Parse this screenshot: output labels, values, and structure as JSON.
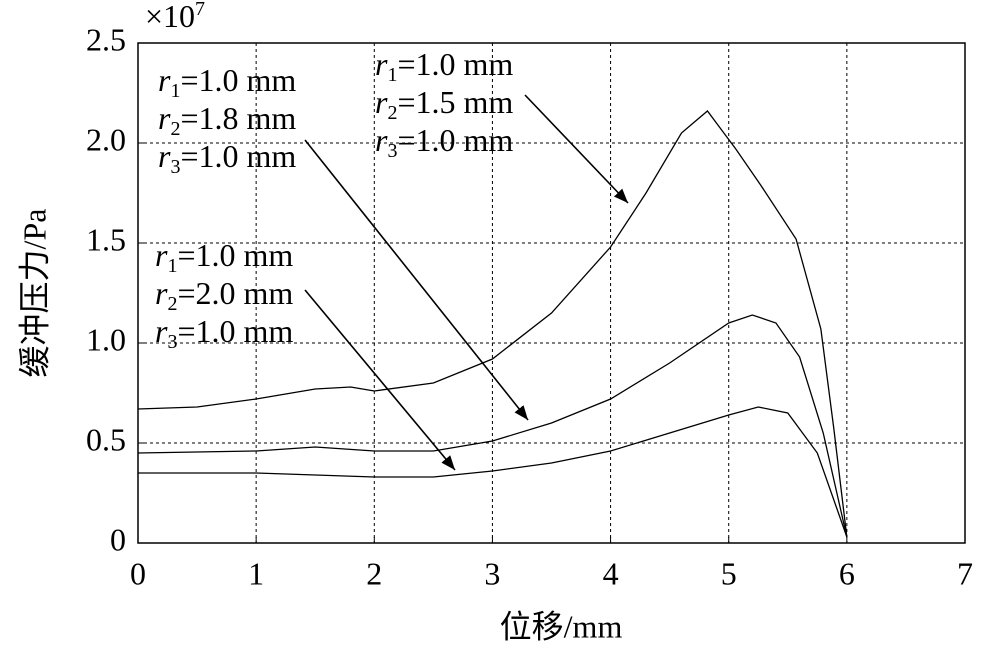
{
  "chart_data": {
    "type": "line",
    "y_label": "缓冲压力/Pa",
    "x_label": "位移/mm",
    "y_exponent": {
      "base": "×10",
      "power": "7"
    },
    "xlim": [
      0,
      7
    ],
    "xticks": [
      0,
      1,
      2,
      3,
      4,
      5,
      6,
      7
    ],
    "ylim": [
      0,
      2.5
    ],
    "yticks": [
      0,
      0.5,
      {
        "value": 1,
        "label": "1.0"
      },
      1.5,
      {
        "value": 2,
        "label": "2.0"
      },
      2.5
    ],
    "grid": true,
    "series": [
      {
        "color": "#000000",
        "x": [
          0,
          0.5,
          1,
          1.5,
          1.8,
          2,
          2.5,
          3,
          3.5,
          4,
          4.3,
          4.6,
          4.82,
          5.06,
          5.27,
          5.57,
          5.78,
          5.89,
          6.0
        ],
        "values": [
          0.67,
          0.68,
          0.72,
          0.77,
          0.78,
          0.76,
          0.8,
          0.92,
          1.15,
          1.48,
          1.75,
          2.05,
          2.16,
          1.97,
          1.79,
          1.52,
          1.07,
          0.57,
          0.03
        ]
      },
      {
        "color": "#000000",
        "x": [
          0,
          1,
          1.5,
          2,
          2.5,
          3,
          3.5,
          4,
          4.5,
          5,
          5.2,
          5.4,
          5.6,
          5.8,
          6.0
        ],
        "values": [
          0.45,
          0.46,
          0.48,
          0.46,
          0.46,
          0.51,
          0.6,
          0.72,
          0.9,
          1.1,
          1.14,
          1.1,
          0.93,
          0.55,
          0.03
        ]
      },
      {
        "color": "#000000",
        "x": [
          0,
          1,
          2,
          2.5,
          3,
          3.5,
          4,
          4.5,
          5,
          5.25,
          5.5,
          5.75,
          6.0
        ],
        "values": [
          0.35,
          0.35,
          0.33,
          0.33,
          0.36,
          0.4,
          0.46,
          0.55,
          0.64,
          0.68,
          0.65,
          0.45,
          0.03
        ]
      }
    ],
    "annotations": [
      {
        "lines": [
          {
            "var": "r",
            "sub": "1",
            "text": "=1.0 mm"
          },
          {
            "var": "r",
            "sub": "2",
            "text": "=1.5 mm"
          },
          {
            "var": "r",
            "sub": "3",
            "text": "=1.0 mm"
          }
        ]
      },
      {
        "lines": [
          {
            "var": "r",
            "sub": "1",
            "text": "=1.0 mm"
          },
          {
            "var": "r",
            "sub": "2",
            "text": "=1.8 mm"
          },
          {
            "var": "r",
            "sub": "3",
            "text": "=1.0 mm"
          }
        ]
      },
      {
        "lines": [
          {
            "var": "r",
            "sub": "1",
            "text": "=1.0 mm"
          },
          {
            "var": "r",
            "sub": "2",
            "text": "=2.0 mm"
          },
          {
            "var": "r",
            "sub": "3",
            "text": "=1.0 mm"
          }
        ]
      }
    ]
  }
}
